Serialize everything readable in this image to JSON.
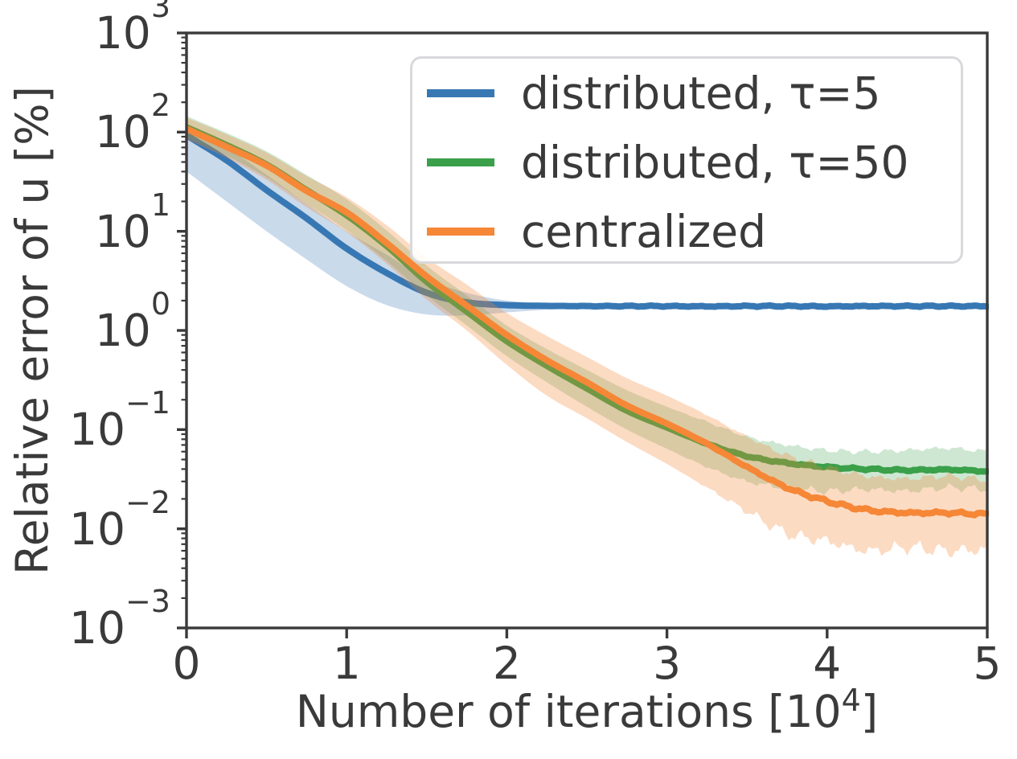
{
  "figure": {
    "ylabel": "Relative error of u [%]",
    "xlabel_pre": "Number of iterations [10",
    "xlabel_sup": "4",
    "xlabel_post": "]",
    "x_tick_labels": [
      "0",
      "1",
      "2",
      "3",
      "4",
      "5"
    ],
    "y_tick_base": "10",
    "y_tick_exponents": [
      "3",
      "2",
      "1",
      "0",
      "−1",
      "−2",
      "−3"
    ]
  },
  "legend": {
    "position": "upper right",
    "items": [
      {
        "label": "distributed, τ=5",
        "color": "#3778b4"
      },
      {
        "label": "distributed, τ=50",
        "color": "#3aa04a"
      },
      {
        "label": "centralized",
        "color": "#f58737"
      }
    ]
  },
  "style": {
    "spine_color": "#3a3a3a",
    "tick_color": "#3a3a3a",
    "text_color": "#3a3a3a",
    "legend_border": "#d9d9dc",
    "background": "#ffffff"
  },
  "chart_data": {
    "type": "line",
    "title": "",
    "xlabel": "Number of iterations [10^4]",
    "ylabel": "Relative error of u [%]",
    "x_range": [
      0,
      5
    ],
    "y_scale": "log",
    "y_exponent_range": [
      -3,
      3
    ],
    "grid": false,
    "legend_position": "upper right",
    "x": [
      0,
      0.25,
      0.5,
      0.75,
      1,
      1.25,
      1.5,
      1.75,
      2,
      2.25,
      2.5,
      2.75,
      3,
      3.25,
      3.5,
      3.75,
      4,
      4.25,
      4.5,
      4.75,
      5
    ],
    "series": [
      {
        "name": "distributed, τ=5",
        "color": "#3778b4",
        "band_opacity": 0.27,
        "values": [
          93,
          52,
          26,
          13.5,
          6.7,
          3.8,
          2.4,
          1.92,
          1.8,
          1.77,
          1.76,
          1.76,
          1.76,
          1.75,
          1.76,
          1.76,
          1.75,
          1.76,
          1.76,
          1.76,
          1.76
        ],
        "band_low": [
          40,
          20,
          10,
          5.2,
          2.8,
          1.8,
          1.45,
          1.42,
          1.52,
          1.62,
          1.68,
          1.7,
          1.71,
          1.71,
          1.71,
          1.71,
          1.71,
          1.71,
          1.71,
          1.71,
          1.71
        ],
        "band_high": [
          115,
          70,
          37,
          19,
          10,
          5.8,
          3.3,
          2.4,
          2.0,
          1.88,
          1.84,
          1.82,
          1.81,
          1.81,
          1.81,
          1.81,
          1.81,
          1.81,
          1.81,
          1.81,
          1.81
        ],
        "line_jitter": 0.008,
        "band_jitter_low": 0.008,
        "band_jitter_high": 0.008,
        "jitter_from": 2.2,
        "noise_phase": 0
      },
      {
        "name": "distributed, τ=50",
        "color": "#3aa04a",
        "band_opacity": 0.25,
        "values": [
          112,
          74,
          47,
          26,
          14.5,
          7.1,
          3.1,
          1.55,
          0.78,
          0.44,
          0.26,
          0.155,
          0.105,
          0.072,
          0.054,
          0.046,
          0.042,
          0.04,
          0.039,
          0.0395,
          0.038
        ],
        "band_low": [
          88,
          58,
          35,
          19,
          10.2,
          5.0,
          2.25,
          1.12,
          0.55,
          0.3,
          0.17,
          0.1,
          0.064,
          0.042,
          0.03,
          0.026,
          0.024,
          0.025,
          0.024,
          0.026,
          0.025
        ],
        "band_high": [
          145,
          98,
          64,
          37,
          21,
          10.2,
          4.5,
          2.25,
          1.12,
          0.65,
          0.4,
          0.25,
          0.17,
          0.12,
          0.085,
          0.07,
          0.062,
          0.06,
          0.062,
          0.065,
          0.06
        ],
        "line_jitter": 0.013,
        "band_jitter_low": 0.05,
        "band_jitter_high": 0.035,
        "jitter_from": 3.0,
        "noise_phase": 2.1
      },
      {
        "name": "centralized",
        "color": "#f58737",
        "band_opacity": 0.3,
        "values": [
          108,
          71,
          46,
          25.5,
          15.5,
          7.6,
          3.5,
          1.78,
          0.9,
          0.5,
          0.3,
          0.175,
          0.115,
          0.072,
          0.042,
          0.026,
          0.019,
          0.0155,
          0.0145,
          0.0145,
          0.014
        ],
        "band_low": [
          85,
          55,
          33,
          17.5,
          9.8,
          4.7,
          2.05,
          1.0,
          0.45,
          0.22,
          0.13,
          0.075,
          0.045,
          0.026,
          0.015,
          0.009,
          0.0075,
          0.006,
          0.0065,
          0.006,
          0.0062
        ],
        "band_high": [
          140,
          95,
          62,
          36,
          22,
          11.5,
          5.4,
          2.9,
          1.5,
          0.88,
          0.54,
          0.33,
          0.22,
          0.14,
          0.085,
          0.055,
          0.042,
          0.034,
          0.032,
          0.034,
          0.031
        ],
        "line_jitter": 0.02,
        "band_jitter_low": 0.09,
        "band_jitter_high": 0.045,
        "jitter_from": 3.1,
        "noise_phase": 4.4
      }
    ]
  }
}
